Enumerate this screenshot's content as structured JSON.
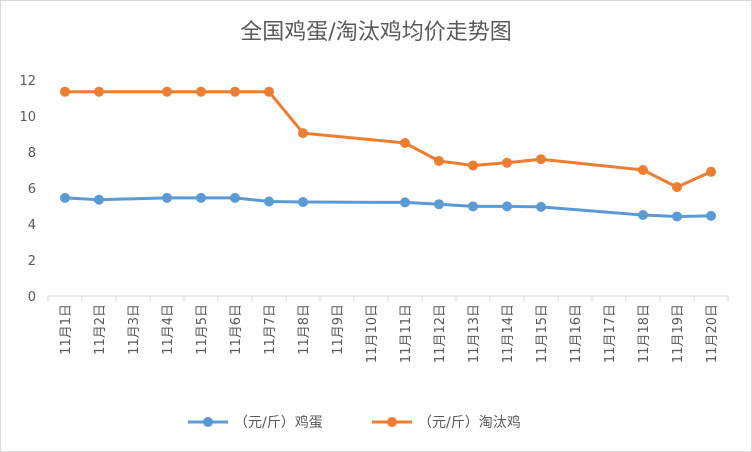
{
  "chart_data": {
    "type": "line",
    "title": "全国鸡蛋/淘汰鸡均价走势图",
    "categories": [
      "11月1日",
      "11月2日",
      "11月3日",
      "11月4日",
      "11月5日",
      "11月6日",
      "11月7日",
      "11月8日",
      "11月9日",
      "11月10日",
      "11月11日",
      "11月12日",
      "11月13日",
      "11月14日",
      "11月15日",
      "11月16日",
      "11月17日",
      "11月18日",
      "11月19日",
      "11月20日"
    ],
    "series": [
      {
        "name": "（元/斤）鸡蛋",
        "color": "#5b9bd5",
        "values": [
          5.45,
          5.35,
          null,
          5.45,
          5.45,
          5.45,
          5.25,
          5.22,
          null,
          null,
          5.2,
          5.1,
          4.98,
          4.98,
          4.95,
          null,
          null,
          4.5,
          4.42,
          4.45
        ]
      },
      {
        "name": "（元/斤）淘汰鸡",
        "color": "#ed7d31",
        "values": [
          11.35,
          11.35,
          null,
          11.35,
          11.35,
          11.35,
          11.35,
          9.05,
          null,
          null,
          8.5,
          7.5,
          7.25,
          7.4,
          7.6,
          null,
          null,
          7.0,
          6.05,
          6.9
        ]
      }
    ],
    "ylim": [
      0,
      12
    ],
    "yticks": [
      0,
      2,
      4,
      6,
      8,
      10,
      12
    ],
    "grid": false,
    "legend": "bottom",
    "xlabel": "",
    "ylabel": ""
  }
}
